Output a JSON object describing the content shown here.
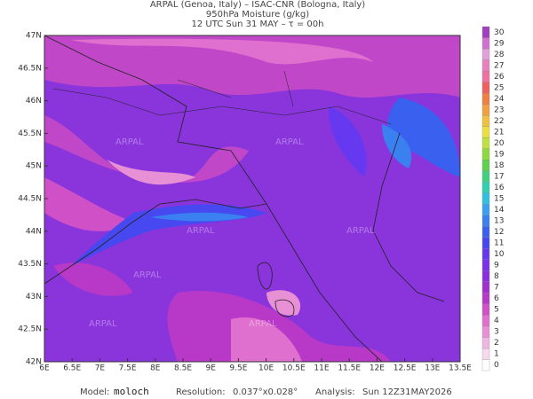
{
  "header": {
    "line1": "ARPAL (Genoa, Italy)  –  ISAC-CNR (Bologna, Italy)",
    "line2": "950hPa Moisture (g/kg)",
    "line3": "12 UTC Sun 31 MAY  –  τ = 00h"
  },
  "map": {
    "lon_ticks": [
      "6E",
      "6.5E",
      "7E",
      "7.5E",
      "8E",
      "8.5E",
      "9E",
      "9.5E",
      "10E",
      "10.5E",
      "11E",
      "11.5E",
      "12E",
      "12.5E",
      "13E",
      "13.5E"
    ],
    "lat_ticks": [
      "47N",
      "46.5N",
      "46N",
      "45.5N",
      "45N",
      "44.5N",
      "44N",
      "43.5N",
      "43N",
      "42.5N",
      "42N"
    ],
    "watermark": "ARPAL"
  },
  "colorbar": {
    "levels": [
      0,
      1,
      2,
      3,
      4,
      5,
      6,
      7,
      8,
      9,
      10,
      11,
      12,
      13,
      14,
      15,
      16,
      17,
      18,
      19,
      20,
      21,
      22,
      23,
      24,
      25,
      26,
      27,
      28,
      29,
      30
    ],
    "colors": [
      "#ffffff",
      "#f7d8ef",
      "#f0b6e2",
      "#e890d5",
      "#e070cf",
      "#d050c8",
      "#b838c8",
      "#a030d0",
      "#8c2ee0",
      "#7a30ec",
      "#6638f0",
      "#4848f0",
      "#3a60f0",
      "#3a80f0",
      "#3aa0f0",
      "#30c0e0",
      "#30d0b0",
      "#40d080",
      "#60d050",
      "#90d840",
      "#c0e040",
      "#e8e040",
      "#f0c040",
      "#f0a040",
      "#f08040",
      "#f06060",
      "#f070a0",
      "#e880c0",
      "#e0a0d8",
      "#d070d0",
      "#a040c0"
    ]
  },
  "footer": {
    "model_label": "Model:",
    "model": "moloch",
    "resolution_label": "Resolution:",
    "resolution": "0.037°x0.028°",
    "analysis_label": "Analysis:",
    "analysis": "Sun 12Z31MAY2026"
  }
}
